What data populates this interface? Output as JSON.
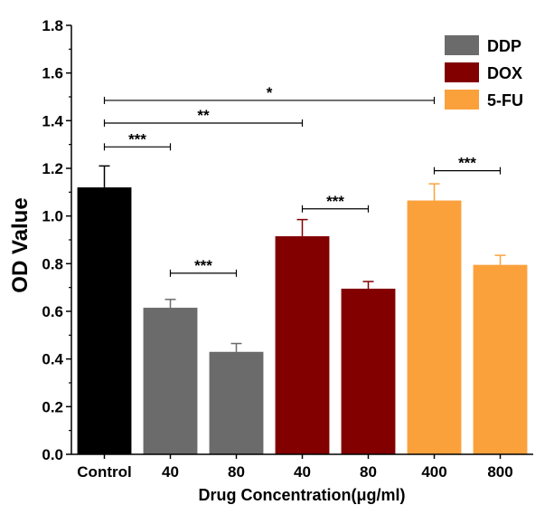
{
  "chart_data": {
    "type": "bar",
    "title": "",
    "xlabel": "Drug Concentration(μg/ml)",
    "ylabel": "OD Value",
    "ylim": [
      0,
      1.8
    ],
    "yticks": [
      "0.0",
      "0.2",
      "0.4",
      "0.6",
      "0.8",
      "1.0",
      "1.2",
      "1.4",
      "1.6",
      "1.8"
    ],
    "grid": false,
    "legend_position": "top-right",
    "categories": [
      "Control",
      "40",
      "80",
      "40",
      "80",
      "400",
      "800"
    ],
    "values": [
      1.12,
      0.615,
      0.43,
      0.915,
      0.695,
      1.065,
      0.795
    ],
    "errors": [
      0.09,
      0.035,
      0.035,
      0.07,
      0.03,
      0.07,
      0.04
    ],
    "groups": [
      "Control",
      "DDP",
      "DDP",
      "DOX",
      "DOX",
      "5-FU",
      "5-FU"
    ],
    "colors": {
      "Control": "#000000",
      "DDP": "#6b6b6b",
      "DOX": "#820000",
      "5-FU": "#fba13c"
    },
    "legend": [
      {
        "label": "DDP",
        "color": "#6b6b6b"
      },
      {
        "label": "DOX",
        "color": "#820000"
      },
      {
        "label": "5-FU",
        "color": "#fba13c"
      }
    ],
    "significance": [
      {
        "from": 0,
        "to": 5,
        "y": 1.485,
        "label": "*"
      },
      {
        "from": 0,
        "to": 3,
        "y": 1.39,
        "label": "**"
      },
      {
        "from": 0,
        "to": 1,
        "y": 1.29,
        "label": "***"
      },
      {
        "from": 1,
        "to": 2,
        "y": 0.76,
        "label": "***"
      },
      {
        "from": 3,
        "to": 4,
        "y": 1.03,
        "label": "***"
      },
      {
        "from": 5,
        "to": 6,
        "y": 1.19,
        "label": "***"
      }
    ]
  }
}
